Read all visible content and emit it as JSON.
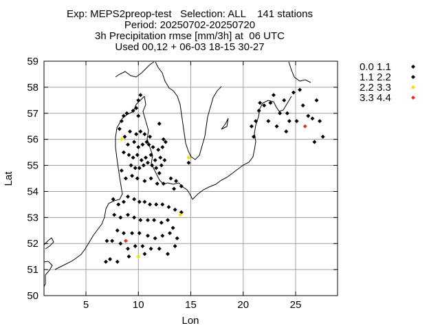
{
  "chart_data": {
    "type": "scatter",
    "title_lines": [
      "Exp: MEPS2preop-test   Selection: ALL    141 stations",
      "Period: 20250702-20250720",
      "3h Precipitation rmse [mm/3h] at  06 UTC",
      "Used 00,12 + 06-03 18-15 30-27"
    ],
    "xlabel": "Lon",
    "ylabel": "Lat",
    "xlim": [
      1,
      29
    ],
    "ylim": [
      50,
      59
    ],
    "xticks": [
      5,
      10,
      15,
      20,
      25
    ],
    "yticks": [
      50,
      51,
      52,
      53,
      54,
      55,
      56,
      57,
      58,
      59
    ],
    "grid": true,
    "legend_position": "outside-right",
    "legend": [
      {
        "label": "0.0 1.1",
        "color": "#000000"
      },
      {
        "label": "1.1 2.2",
        "color": "#000000"
      },
      {
        "label": "2.2 3.3",
        "color": "#f0e000"
      },
      {
        "label": "3.3 4.4",
        "color": "#e03030"
      }
    ],
    "series": [
      {
        "name": "0.0 1.1",
        "color": "#000000",
        "points": [
          [
            8.2,
            56.4
          ],
          [
            8.4,
            56.7
          ],
          [
            8.6,
            56.9
          ],
          [
            8.9,
            57.0
          ],
          [
            9.5,
            57.1
          ],
          [
            10.0,
            57.5
          ],
          [
            10.2,
            57.7
          ],
          [
            9.8,
            57.2
          ],
          [
            10.0,
            56.9
          ],
          [
            8.7,
            56.1
          ],
          [
            9.2,
            56.3
          ],
          [
            9.8,
            56.2
          ],
          [
            10.2,
            56.3
          ],
          [
            10.6,
            56.2
          ],
          [
            11.1,
            56.1
          ],
          [
            9.0,
            55.8
          ],
          [
            9.6,
            55.9
          ],
          [
            10.0,
            55.7
          ],
          [
            10.4,
            55.8
          ],
          [
            10.8,
            55.9
          ],
          [
            11.4,
            55.7
          ],
          [
            11.9,
            55.6
          ],
          [
            12.3,
            55.7
          ],
          [
            12.6,
            55.9
          ],
          [
            12.4,
            56.0
          ],
          [
            8.6,
            55.5
          ],
          [
            9.1,
            55.4
          ],
          [
            9.5,
            55.3
          ],
          [
            9.9,
            55.4
          ],
          [
            10.3,
            55.2
          ],
          [
            10.7,
            55.3
          ],
          [
            11.2,
            55.4
          ],
          [
            11.6,
            55.2
          ],
          [
            12.1,
            55.3
          ],
          [
            12.5,
            55.2
          ],
          [
            12.2,
            55.0
          ],
          [
            9.3,
            55.0
          ],
          [
            9.7,
            54.9
          ],
          [
            10.1,
            54.9
          ],
          [
            10.5,
            55.0
          ],
          [
            10.9,
            55.1
          ],
          [
            11.3,
            55.0
          ],
          [
            11.7,
            54.9
          ],
          [
            12.0,
            54.7
          ],
          [
            8.4,
            54.8
          ],
          [
            8.8,
            54.5
          ],
          [
            9.4,
            54.6
          ],
          [
            9.9,
            54.5
          ],
          [
            10.6,
            54.4
          ],
          [
            11.2,
            54.5
          ],
          [
            11.8,
            54.3
          ],
          [
            12.4,
            54.3
          ],
          [
            13.1,
            54.5
          ],
          [
            13.6,
            54.4
          ],
          [
            14.1,
            54.2
          ],
          [
            13.4,
            54.1
          ],
          [
            7.6,
            53.7
          ],
          [
            8.1,
            53.5
          ],
          [
            8.6,
            53.6
          ],
          [
            9.0,
            53.8
          ],
          [
            9.6,
            53.7
          ],
          [
            10.1,
            53.6
          ],
          [
            10.6,
            53.6
          ],
          [
            11.1,
            53.5
          ],
          [
            11.7,
            53.5
          ],
          [
            12.3,
            53.5
          ],
          [
            12.9,
            53.4
          ],
          [
            13.5,
            53.3
          ],
          [
            14.1,
            53.2
          ],
          [
            7.7,
            53.1
          ],
          [
            8.3,
            53.0
          ],
          [
            9.0,
            53.1
          ],
          [
            9.6,
            53.0
          ],
          [
            10.2,
            52.9
          ],
          [
            10.9,
            52.9
          ],
          [
            11.5,
            52.9
          ],
          [
            12.2,
            52.8
          ],
          [
            12.8,
            52.9
          ],
          [
            13.3,
            52.6
          ],
          [
            8.0,
            52.5
          ],
          [
            8.6,
            52.4
          ],
          [
            9.4,
            52.4
          ],
          [
            10.1,
            52.4
          ],
          [
            10.9,
            52.3
          ],
          [
            11.6,
            52.2
          ],
          [
            12.3,
            52.3
          ],
          [
            13.0,
            52.4
          ],
          [
            13.7,
            52.2
          ],
          [
            7.0,
            52.1
          ],
          [
            7.5,
            52.1
          ],
          [
            8.3,
            52.0
          ],
          [
            9.0,
            51.8
          ],
          [
            9.7,
            51.9
          ],
          [
            10.4,
            51.9
          ],
          [
            11.2,
            51.8
          ],
          [
            12.0,
            51.8
          ],
          [
            12.8,
            51.6
          ],
          [
            13.5,
            51.9
          ],
          [
            6.9,
            51.3
          ],
          [
            7.3,
            51.4
          ],
          [
            8.0,
            51.3
          ],
          [
            9.1,
            51.5
          ],
          [
            10.6,
            51.6
          ],
          [
            14.8,
            55.1
          ],
          [
            21.0,
            56.1
          ],
          [
            21.2,
            56.7
          ],
          [
            21.5,
            57.1
          ],
          [
            21.6,
            57.4
          ],
          [
            22.0,
            57.3
          ],
          [
            22.6,
            57.4
          ],
          [
            22.9,
            57.7
          ],
          [
            23.5,
            57.0
          ],
          [
            23.9,
            57.5
          ],
          [
            24.2,
            57.0
          ],
          [
            24.4,
            56.7
          ],
          [
            24.8,
            57.8
          ],
          [
            25.4,
            57.9
          ],
          [
            25.7,
            57.3
          ],
          [
            26.2,
            56.9
          ],
          [
            26.6,
            56.8
          ],
          [
            27.0,
            57.5
          ],
          [
            27.3,
            56.7
          ],
          [
            27.6,
            56.1
          ],
          [
            26.8,
            55.9
          ],
          [
            25.1,
            56.7
          ],
          [
            22.4,
            56.7
          ],
          [
            23.2,
            56.5
          ],
          [
            20.8,
            56.5
          ],
          [
            24.1,
            56.3
          ],
          [
            12.0,
            56.6
          ],
          [
            11.0,
            55.8
          ]
        ]
      },
      {
        "name": "2.2 3.3",
        "color": "#f0e000",
        "points": [
          [
            8.4,
            56.0
          ],
          [
            14.8,
            55.3
          ],
          [
            14.0,
            53.1
          ],
          [
            10.0,
            51.5
          ]
        ]
      },
      {
        "name": "3.3 4.4",
        "color": "#e03030",
        "points": [
          [
            8.8,
            52.1
          ],
          [
            25.9,
            56.5
          ]
        ]
      }
    ]
  }
}
